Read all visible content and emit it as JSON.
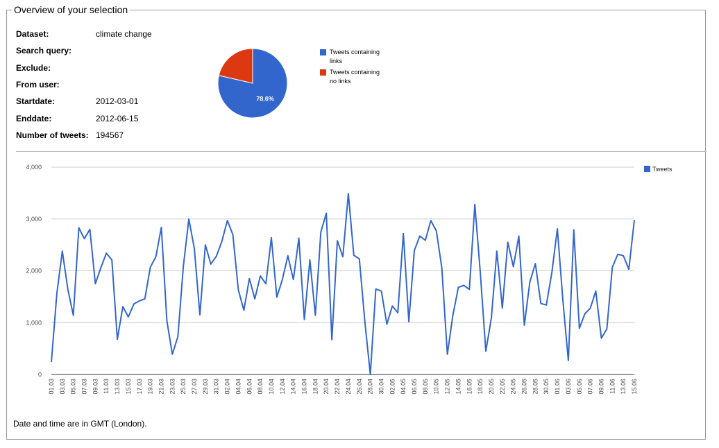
{
  "fieldset": {
    "legend": "Overview of your selection"
  },
  "info": [
    {
      "label": "Dataset:",
      "value": "climate change"
    },
    {
      "label": "Search query:",
      "value": ""
    },
    {
      "label": "Exclude:",
      "value": ""
    },
    {
      "label": "From user:",
      "value": ""
    },
    {
      "label": "Startdate:",
      "value": "2012-03-01"
    },
    {
      "label": "Enddate:",
      "value": "2012-06-15"
    },
    {
      "label": "Number of tweets:",
      "value": "194567"
    }
  ],
  "footer": "Date and time are in GMT (London).",
  "chart_data": [
    {
      "type": "pie",
      "slices": [
        {
          "name": "Tweets containing links",
          "value": 78.6,
          "color": "#3366cc",
          "label": "78.6%"
        },
        {
          "name": "Tweets containing no links",
          "value": 21.4,
          "color": "#dc3912"
        }
      ],
      "legend": "right"
    },
    {
      "type": "line",
      "series_name": "Tweets",
      "color": "#3366cc",
      "ylim": [
        0,
        4000
      ],
      "y_ticks": [
        "0",
        "1,000",
        "2,000",
        "3,000",
        "4,000"
      ],
      "grid": true,
      "legend": "top-right",
      "x": [
        "01.03",
        "02.03",
        "03.03",
        "04.03",
        "05.03",
        "06.03",
        "07.03",
        "08.03",
        "09.03",
        "10.03",
        "11.03",
        "12.03",
        "13.03",
        "14.03",
        "15.03",
        "16.03",
        "17.03",
        "18.03",
        "19.03",
        "20.03",
        "21.03",
        "22.03",
        "23.03",
        "24.03",
        "25.03",
        "26.03",
        "27.03",
        "28.03",
        "29.03",
        "30.03",
        "31.03",
        "01.04",
        "02.04",
        "03.04",
        "04.04",
        "05.04",
        "06.04",
        "07.04",
        "08.04",
        "09.04",
        "10.04",
        "11.04",
        "12.04",
        "13.04",
        "14.04",
        "15.04",
        "16.04",
        "17.04",
        "18.04",
        "19.04",
        "20.04",
        "21.04",
        "22.04",
        "23.04",
        "24.04",
        "25.04",
        "26.04",
        "27.04",
        "28.04",
        "29.04",
        "30.04",
        "01.05",
        "02.05",
        "03.05",
        "04.05",
        "05.05",
        "06.05",
        "07.05",
        "08.05",
        "09.05",
        "10.05",
        "11.05",
        "12.05",
        "13.05",
        "14.05",
        "15.05",
        "16.05",
        "17.05",
        "18.05",
        "19.05",
        "20.05",
        "21.05",
        "22.05",
        "23.05",
        "24.05",
        "25.05",
        "26.05",
        "27.05",
        "28.05",
        "29.05",
        "30.05",
        "31.05",
        "01.06",
        "02.06",
        "03.06",
        "04.06",
        "05.06",
        "06.06",
        "07.06",
        "08.06",
        "09.06",
        "10.06",
        "11.06",
        "12.06",
        "13.06",
        "14.06",
        "15.06"
      ],
      "x_tick_labels": [
        "01.03",
        "03.03",
        "05.03",
        "07.03",
        "09.03",
        "11.03",
        "13.03",
        "15.03",
        "17.03",
        "19.03",
        "21.03",
        "23.03",
        "25.03",
        "27.03",
        "29.03",
        "31.03",
        "02.04",
        "04.04",
        "06.04",
        "08.04",
        "10.04",
        "12.04",
        "14.04",
        "16.04",
        "18.04",
        "20.04",
        "22.04",
        "24.04",
        "26.04",
        "28.04",
        "30.04",
        "02.05",
        "04.05",
        "06.05",
        "08.05",
        "10.05",
        "12.05",
        "14.05",
        "16.05",
        "18.05",
        "20.05",
        "22.05",
        "24.05",
        "26.05",
        "28.05",
        "30.05",
        "01.06",
        "03.06",
        "05.06",
        "07.06",
        "09.06",
        "11.06",
        "13.06",
        "15.06"
      ],
      "values": [
        240,
        1560,
        2380,
        1640,
        1140,
        2830,
        2620,
        2800,
        1750,
        2060,
        2340,
        2210,
        680,
        1310,
        1110,
        1360,
        1420,
        1460,
        2070,
        2270,
        2840,
        1040,
        390,
        730,
        2090,
        3000,
        2430,
        1150,
        2500,
        2130,
        2280,
        2570,
        2970,
        2700,
        1630,
        1240,
        1850,
        1460,
        1900,
        1750,
        2640,
        1490,
        1830,
        2290,
        1830,
        2630,
        1060,
        2210,
        1140,
        2750,
        3110,
        670,
        2580,
        2270,
        3490,
        2300,
        2230,
        1020,
        0,
        1650,
        1610,
        970,
        1320,
        1190,
        2720,
        1020,
        2390,
        2670,
        2590,
        2970,
        2770,
        2060,
        390,
        1140,
        1680,
        1720,
        1640,
        3280,
        1960,
        450,
        1090,
        2380,
        1280,
        2550,
        2080,
        2670,
        950,
        1780,
        2140,
        1370,
        1340,
        1960,
        2810,
        1440,
        270,
        2790,
        890,
        1170,
        1280,
        1610,
        700,
        880,
        2070,
        2320,
        2290,
        2030,
        2980
      ]
    }
  ]
}
